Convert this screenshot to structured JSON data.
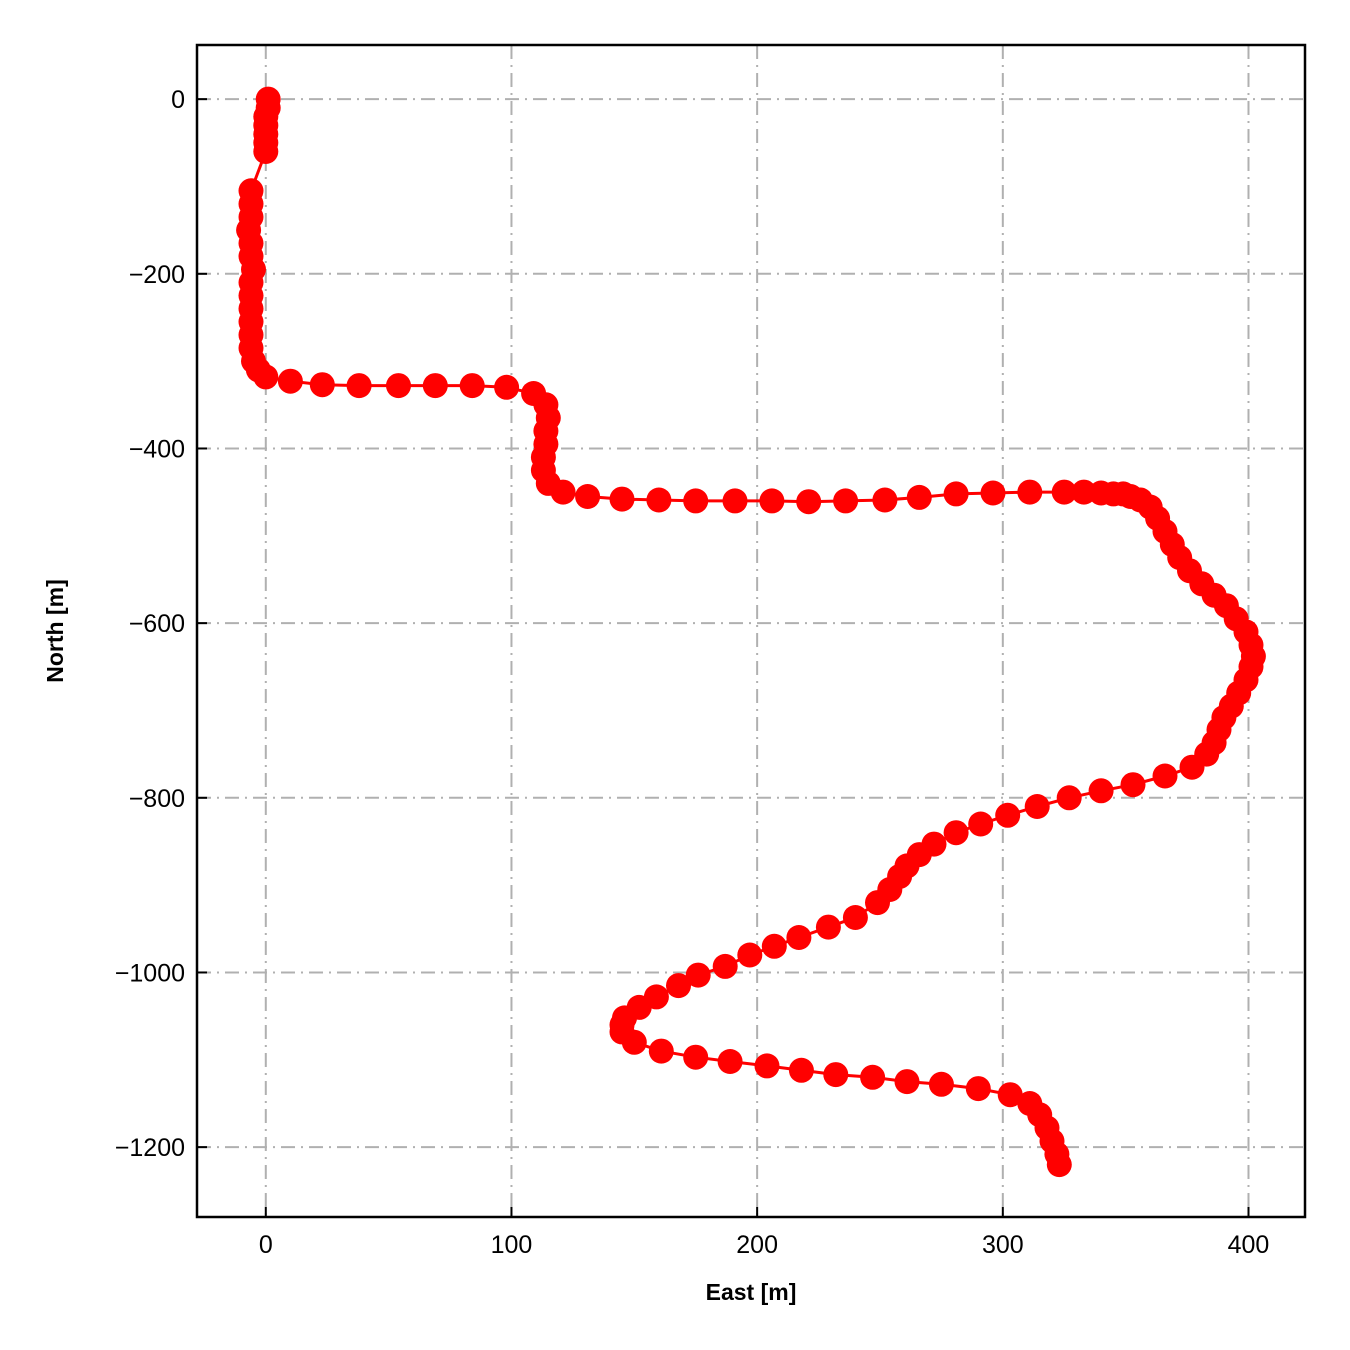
{
  "chart_data": {
    "type": "line",
    "xlabel": "East [m]",
    "ylabel": "North [m]",
    "xlim": [
      -28,
      423
    ],
    "ylim": [
      -1280,
      62
    ],
    "xticks": [
      0,
      100,
      200,
      300,
      400
    ],
    "yticks": [
      0,
      -200,
      -400,
      -600,
      -800,
      -1000,
      -1200
    ],
    "xtick_labels": [
      "0",
      "100",
      "200",
      "300",
      "400"
    ],
    "ytick_labels": [
      "0",
      "−200",
      "−400",
      "−600",
      "−800",
      "−1000",
      "−1200"
    ],
    "grid": true,
    "series": [
      {
        "color": "#ff0000",
        "marker": "circle",
        "points": [
          [
            1,
            0
          ],
          [
            1,
            -10
          ],
          [
            0,
            -20
          ],
          [
            0,
            -30
          ],
          [
            0,
            -40
          ],
          [
            0,
            -50
          ],
          [
            0,
            -60
          ],
          [
            -6,
            -105
          ],
          [
            -6,
            -120
          ],
          [
            -6,
            -135
          ],
          [
            -7,
            -150
          ],
          [
            -6,
            -165
          ],
          [
            -6,
            -180
          ],
          [
            -5,
            -195
          ],
          [
            -6,
            -210
          ],
          [
            -6,
            -225
          ],
          [
            -6,
            -240
          ],
          [
            -6,
            -255
          ],
          [
            -6,
            -270
          ],
          [
            -6,
            -285
          ],
          [
            -5,
            -300
          ],
          [
            -3,
            -310
          ],
          [
            0,
            -318
          ],
          [
            10,
            -323
          ],
          [
            23,
            -327
          ],
          [
            38,
            -328
          ],
          [
            54,
            -328
          ],
          [
            69,
            -328
          ],
          [
            84,
            -328
          ],
          [
            98,
            -330
          ],
          [
            109,
            -337
          ],
          [
            114,
            -350
          ],
          [
            115,
            -365
          ],
          [
            114,
            -380
          ],
          [
            114,
            -395
          ],
          [
            113,
            -410
          ],
          [
            113,
            -425
          ],
          [
            115,
            -440
          ],
          [
            121,
            -450
          ],
          [
            131,
            -455
          ],
          [
            145,
            -458
          ],
          [
            160,
            -459
          ],
          [
            175,
            -460
          ],
          [
            191,
            -460
          ],
          [
            206,
            -460
          ],
          [
            221,
            -461
          ],
          [
            236,
            -460
          ],
          [
            252,
            -459
          ],
          [
            266,
            -456
          ],
          [
            281,
            -452
          ],
          [
            296,
            -451
          ],
          [
            311,
            -450
          ],
          [
            325,
            -450
          ],
          [
            333,
            -450
          ],
          [
            340,
            -451
          ],
          [
            345,
            -452
          ],
          [
            349,
            -452
          ],
          [
            352,
            -455
          ],
          [
            356,
            -459
          ],
          [
            360,
            -467
          ],
          [
            363,
            -480
          ],
          [
            366,
            -495
          ],
          [
            369,
            -510
          ],
          [
            372,
            -525
          ],
          [
            376,
            -540
          ],
          [
            381,
            -555
          ],
          [
            386,
            -568
          ],
          [
            391,
            -580
          ],
          [
            395,
            -595
          ],
          [
            399,
            -610
          ],
          [
            401,
            -625
          ],
          [
            402,
            -638
          ],
          [
            401,
            -650
          ],
          [
            399,
            -665
          ],
          [
            396,
            -680
          ],
          [
            393,
            -695
          ],
          [
            390,
            -708
          ],
          [
            388,
            -722
          ],
          [
            386,
            -737
          ],
          [
            383,
            -750
          ],
          [
            377,
            -765
          ],
          [
            366,
            -775
          ],
          [
            353,
            -785
          ],
          [
            340,
            -792
          ],
          [
            327,
            -800
          ],
          [
            314,
            -810
          ],
          [
            302,
            -820
          ],
          [
            291,
            -830
          ],
          [
            281,
            -840
          ],
          [
            272,
            -853
          ],
          [
            266,
            -865
          ],
          [
            261,
            -878
          ],
          [
            258,
            -890
          ],
          [
            254,
            -905
          ],
          [
            249,
            -920
          ],
          [
            240,
            -937
          ],
          [
            229,
            -948
          ],
          [
            217,
            -960
          ],
          [
            207,
            -970
          ],
          [
            197,
            -980
          ],
          [
            187,
            -993
          ],
          [
            176,
            -1003
          ],
          [
            168,
            -1015
          ],
          [
            159,
            -1028
          ],
          [
            152,
            -1040
          ],
          [
            146,
            -1052
          ],
          [
            145,
            -1060
          ],
          [
            145,
            -1068
          ],
          [
            150,
            -1080
          ],
          [
            161,
            -1090
          ],
          [
            175,
            -1097
          ],
          [
            189,
            -1102
          ],
          [
            204,
            -1107
          ],
          [
            218,
            -1112
          ],
          [
            232,
            -1117
          ],
          [
            247,
            -1120
          ],
          [
            261,
            -1125
          ],
          [
            275,
            -1128
          ],
          [
            290,
            -1133
          ],
          [
            303,
            -1140
          ],
          [
            311,
            -1150
          ],
          [
            315,
            -1163
          ],
          [
            318,
            -1178
          ],
          [
            320,
            -1193
          ],
          [
            322,
            -1208
          ],
          [
            323,
            -1220
          ]
        ]
      }
    ]
  }
}
